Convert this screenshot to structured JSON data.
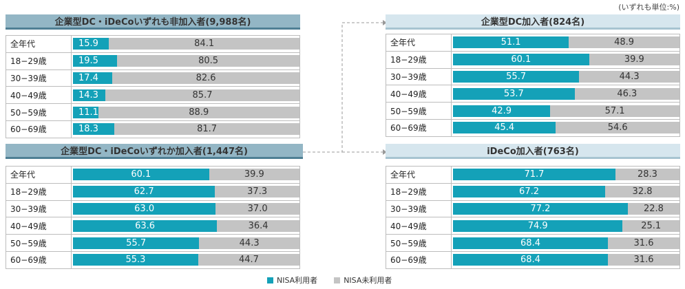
{
  "unit_note": "(いずれも単位:%)",
  "legend": {
    "nisa_user": "NISA利用者",
    "nisa_nonuser": "NISA未利用者"
  },
  "colors": {
    "nisa_user": "#14a1b8",
    "nisa_nonuser": "#c4c4c4"
  },
  "chart_data": [
    {
      "type": "bar",
      "title": "企業型DC・iDeCoいずれも非加入者(9,988名)",
      "categories": [
        "全年代",
        "18−29歳",
        "30−39歳",
        "40−49歳",
        "50−59歳",
        "60−69歳"
      ],
      "series": [
        {
          "name": "NISA利用者",
          "values": [
            15.9,
            19.5,
            17.4,
            14.3,
            11.1,
            18.3
          ]
        },
        {
          "name": "NISA未利用者",
          "values": [
            84.1,
            80.5,
            82.6,
            85.7,
            88.9,
            81.7
          ]
        }
      ]
    },
    {
      "type": "bar",
      "title": "企業型DC・iDeCoいずれか加入者(1,447名)",
      "categories": [
        "全年代",
        "18−29歳",
        "30−39歳",
        "40−49歳",
        "50−59歳",
        "60−69歳"
      ],
      "series": [
        {
          "name": "NISA利用者",
          "values": [
            60.1,
            62.7,
            63.0,
            63.6,
            55.7,
            55.3
          ]
        },
        {
          "name": "NISA未利用者",
          "values": [
            39.9,
            37.3,
            37.0,
            36.4,
            44.3,
            44.7
          ]
        }
      ]
    },
    {
      "type": "bar",
      "title": "企業型DC加入者(824名)",
      "categories": [
        "全年代",
        "18−29歳",
        "30−39歳",
        "40−49歳",
        "50−59歳",
        "60−69歳"
      ],
      "series": [
        {
          "name": "NISA利用者",
          "values": [
            51.1,
            60.1,
            55.7,
            53.7,
            42.9,
            45.4
          ]
        },
        {
          "name": "NISA未利用者",
          "values": [
            48.9,
            39.9,
            44.3,
            46.3,
            57.1,
            54.6
          ]
        }
      ]
    },
    {
      "type": "bar",
      "title": "iDeCo加入者(763名)",
      "categories": [
        "全年代",
        "18−29歳",
        "30−39歳",
        "40−49歳",
        "50−59歳",
        "60−69歳"
      ],
      "series": [
        {
          "name": "NISA利用者",
          "values": [
            71.7,
            67.2,
            77.2,
            74.9,
            68.4,
            68.4
          ]
        },
        {
          "name": "NISA未利用者",
          "values": [
            28.3,
            32.8,
            22.8,
            25.1,
            31.6,
            31.6
          ]
        }
      ]
    }
  ]
}
